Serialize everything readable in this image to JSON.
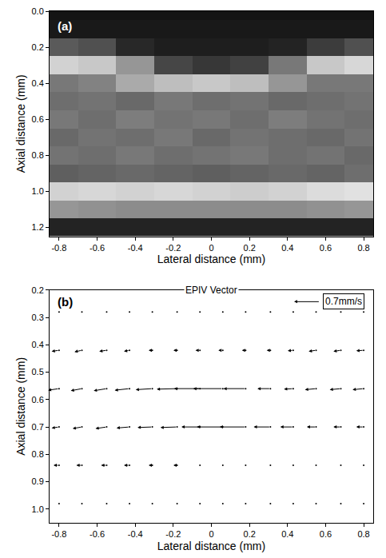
{
  "chart_data": [
    {
      "type": "heatmap",
      "panel": "(a)",
      "x_label": "Lateral distance (mm)",
      "y_label": "Axial distance (mm)",
      "x": [
        -0.8,
        -0.6,
        -0.4,
        -0.2,
        0,
        0.2,
        0.4,
        0.6,
        0.8
      ],
      "y": [
        0,
        0.1,
        0.2,
        0.3,
        0.4,
        0.5,
        0.6,
        0.7,
        0.8,
        0.9,
        1.0,
        1.1,
        1.2
      ],
      "z": [
        [
          20,
          20,
          20,
          20,
          20,
          20,
          20,
          20,
          20
        ],
        [
          25,
          25,
          25,
          25,
          25,
          25,
          25,
          25,
          25
        ],
        [
          90,
          80,
          40,
          30,
          30,
          30,
          35,
          60,
          80
        ],
        [
          210,
          200,
          150,
          70,
          55,
          65,
          120,
          200,
          215
        ],
        [
          120,
          130,
          170,
          190,
          200,
          190,
          150,
          120,
          120
        ],
        [
          110,
          115,
          105,
          120,
          110,
          115,
          105,
          110,
          115
        ],
        [
          120,
          110,
          125,
          115,
          120,
          110,
          125,
          115,
          110
        ],
        [
          105,
          115,
          110,
          120,
          105,
          115,
          110,
          105,
          115
        ],
        [
          115,
          110,
          120,
          110,
          115,
          120,
          110,
          115,
          105
        ],
        [
          95,
          100,
          105,
          100,
          95,
          100,
          105,
          100,
          110
        ],
        [
          210,
          215,
          210,
          215,
          210,
          205,
          210,
          220,
          225
        ],
        [
          150,
          145,
          140,
          140,
          140,
          140,
          140,
          145,
          150
        ],
        [
          35,
          35,
          35,
          35,
          35,
          35,
          35,
          35,
          35
        ]
      ],
      "zlim": [
        0,
        255
      ],
      "color": "gray",
      "xlim": [
        -0.85,
        0.85
      ],
      "ylim": [
        1.25,
        0
      ],
      "xticks": [
        -0.8,
        -0.6,
        -0.4,
        -0.2,
        0,
        0.2,
        0.4,
        0.6,
        0.8
      ],
      "yticks": [
        {
          "value": 0,
          "label": "0.0"
        },
        0.2,
        0.4,
        0.6,
        0.8,
        {
          "value": 1,
          "label": "1.0"
        },
        1.2
      ]
    },
    {
      "type": "quiver",
      "panel": "(b)",
      "title": "EPIV Vector",
      "x_label": "Lateral distance (mm)",
      "y_label": "Axial distance (mm)",
      "x": [
        -0.8,
        -0.68,
        -0.55,
        -0.43,
        -0.31,
        -0.18,
        -0.06,
        0.06,
        0.18,
        0.31,
        0.43,
        0.55,
        0.68,
        0.8
      ],
      "y": [
        0.28,
        0.42,
        0.56,
        0.7,
        0.84,
        0.98
      ],
      "u": [
        [
          0,
          -0.05,
          -0.05,
          -0.03,
          0,
          0,
          0,
          0,
          -0.03,
          -0.05,
          0,
          0,
          0,
          0
        ],
        [
          -0.2,
          -0.2,
          -0.2,
          -0.15,
          -0.1,
          -0.1,
          -0.12,
          -0.12,
          -0.1,
          -0.1,
          -0.15,
          -0.2,
          -0.2,
          -0.2
        ],
        [
          -0.3,
          -0.3,
          -0.35,
          -0.4,
          -0.45,
          -0.55,
          -0.7,
          -0.8,
          -0.6,
          -0.35,
          -0.25,
          -0.3,
          -0.3,
          -0.3
        ],
        [
          -0.2,
          -0.25,
          -0.3,
          -0.35,
          -0.4,
          -0.45,
          -0.5,
          -0.7,
          -0.7,
          -0.45,
          -0.35,
          -0.25,
          -0.2,
          -0.2
        ],
        [
          -0.15,
          -0.15,
          -0.15,
          -0.15,
          -0.1,
          -0.1,
          -0.05,
          -0.03,
          0,
          0,
          0,
          0,
          0,
          0
        ],
        [
          0,
          0,
          0,
          0,
          0,
          0,
          0,
          0,
          0,
          0,
          0,
          0,
          0,
          0
        ]
      ],
      "v": [
        [
          0,
          0,
          0,
          0,
          0,
          0,
          0,
          0,
          0,
          0,
          0,
          0,
          0,
          0
        ],
        [
          0.02,
          0.03,
          0.02,
          0.02,
          0,
          0,
          0,
          0,
          0,
          0,
          0.01,
          0.02,
          0.02,
          0.01
        ],
        [
          0.03,
          0.04,
          0.04,
          0.03,
          0.02,
          0.01,
          0,
          0,
          0,
          0,
          0.01,
          0.02,
          0.02,
          0.02
        ],
        [
          0.02,
          0.03,
          0.03,
          0.02,
          0.01,
          0.01,
          0,
          0,
          0,
          0,
          0,
          0,
          0,
          0
        ],
        [
          0,
          0,
          0,
          0,
          0,
          0,
          0,
          0,
          0,
          0,
          0,
          0,
          0,
          0
        ],
        [
          0,
          0,
          0,
          0,
          0,
          0,
          0,
          0,
          0,
          0,
          0,
          0,
          0,
          0
        ]
      ],
      "reference": {
        "value": 0.7,
        "label": "0.7mm/s"
      },
      "color": "#000000",
      "xlim": [
        -0.85,
        0.85
      ],
      "ylim": [
        1.05,
        0.2
      ],
      "xticks": [
        -0.8,
        -0.6,
        -0.4,
        -0.2,
        0,
        0.2,
        0.4,
        0.6,
        0.8
      ],
      "yticks": [
        0.2,
        0.3,
        0.4,
        0.5,
        0.6,
        0.7,
        0.8,
        0.9,
        {
          "value": 1,
          "label": "1.0"
        }
      ]
    }
  ]
}
